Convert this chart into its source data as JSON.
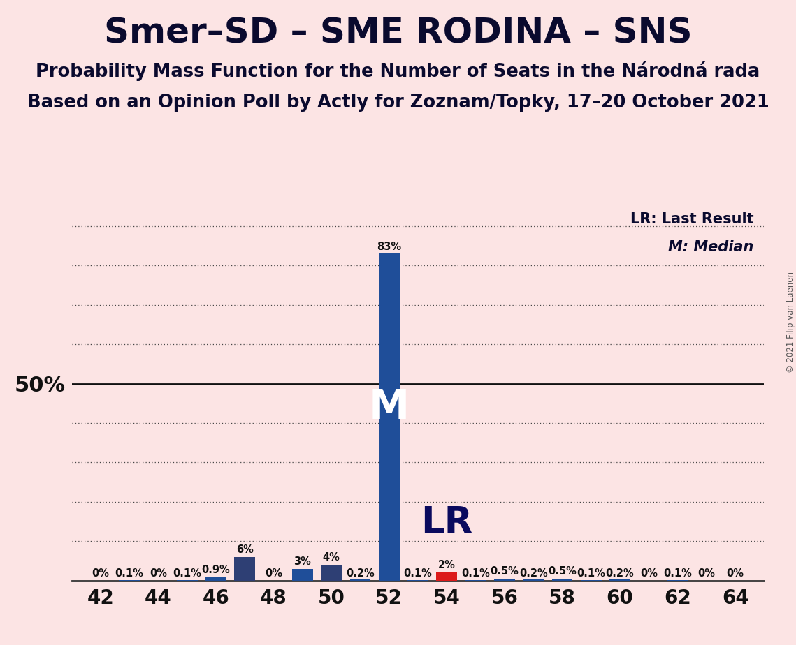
{
  "title": "Smer–SD – SME RODINA – SNS",
  "subtitle1": "Probability Mass Function for the Number of Seats in the Národná rada",
  "subtitle2": "Based on an Opinion Poll by Actly for Zoznam/Topky, 17–20 October 2021",
  "copyright": "© 2021 Filip van Laenen",
  "legend_lr": "LR: Last Result",
  "legend_m": "M: Median",
  "seats": [
    42,
    43,
    44,
    45,
    46,
    47,
    48,
    49,
    50,
    51,
    52,
    53,
    54,
    55,
    56,
    57,
    58,
    59,
    60,
    61,
    62,
    63,
    64
  ],
  "probabilities": [
    0.0,
    0.1,
    0.0,
    0.1,
    0.9,
    6.0,
    0.0,
    3.0,
    4.0,
    0.2,
    83.0,
    0.1,
    2.0,
    0.1,
    0.5,
    0.2,
    0.5,
    0.1,
    0.2,
    0.0,
    0.1,
    0.0,
    0.0
  ],
  "labels": [
    "0%",
    "0.1%",
    "0%",
    "0.1%",
    "0.9%",
    "6%",
    "0%",
    "3%",
    "4%",
    "0.2%",
    "83%",
    "0.1%",
    "2%",
    "0.1%",
    "0.5%",
    "0.2%",
    "0.5%",
    "0.1%",
    "0.2%",
    "0%",
    "0.1%",
    "0%",
    "0%"
  ],
  "median_seat": 52,
  "lr_seat": 54,
  "main_bar_color": "#1f4e99",
  "dark_bar_color": "#2e3f74",
  "lr_bar_color": "#dc1a1a",
  "background_color": "#fce4e4",
  "ylabel_50": "50%",
  "xlim": [
    41,
    65
  ],
  "ylim": [
    0,
    95
  ],
  "bar_width": 0.72,
  "title_fontsize": 36,
  "subtitle_fontsize": 18.5,
  "bar_label_fontsize": 10.5,
  "axis_tick_fontsize": 20,
  "ylabel_fontsize": 22,
  "legend_fontsize": 15,
  "M_fontsize": 42,
  "LR_fontsize": 38
}
